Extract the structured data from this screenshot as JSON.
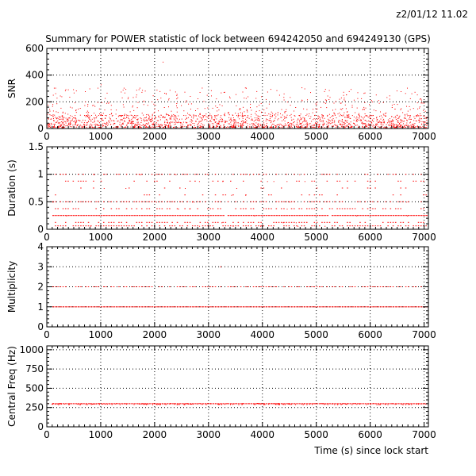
{
  "timestamp": "z2/01/12   11.02",
  "title": "Summary for POWER statistic of lock between 694242050 and 694249130 (GPS)",
  "xlabel": "Time (s) since lock start",
  "colors": {
    "points": "#ff0000",
    "axes": "#000000",
    "grid": "#000000"
  },
  "chart_data": [
    {
      "type": "scatter",
      "ylabel": "SNR",
      "xlim": [
        0,
        7080
      ],
      "ylim": [
        0,
        600
      ],
      "x_ticks": [
        "0",
        "1000",
        "2000",
        "3000",
        "4000",
        "5000",
        "6000",
        "7000"
      ],
      "y_ticks": [
        "0",
        "200",
        "400",
        "600"
      ],
      "grid": true,
      "description_values": {
        "dense_band": [
          10,
          100
        ],
        "sparse_band": [
          100,
          310
        ],
        "max": 500
      }
    },
    {
      "type": "scatter",
      "ylabel": "Duration (s)",
      "xlim": [
        0,
        7080
      ],
      "ylim": [
        0,
        1.5
      ],
      "x_ticks": [
        "0",
        "1000",
        "2000",
        "3000",
        "4000",
        "5000",
        "6000",
        "7000"
      ],
      "y_ticks": [
        "0",
        "0.5",
        "1",
        "1.5"
      ],
      "grid": true,
      "levels": [
        0.0625,
        0.125,
        0.25,
        0.375,
        0.5,
        0.625,
        0.75,
        0.875,
        1.0
      ],
      "level_density": [
        0.7,
        0.6,
        0.98,
        0.5,
        0.55,
        0.15,
        0.12,
        0.3,
        0.35
      ]
    },
    {
      "type": "scatter",
      "ylabel": "Multiplicity",
      "xlim": [
        0,
        7080
      ],
      "ylim": [
        0,
        4
      ],
      "x_ticks": [
        "0",
        "1000",
        "2000",
        "3000",
        "4000",
        "5000",
        "6000",
        "7000"
      ],
      "y_ticks": [
        "0",
        "1",
        "2",
        "3",
        "4"
      ],
      "grid": true,
      "levels": [
        1,
        2,
        3
      ],
      "level_density": [
        1.0,
        0.7,
        0.01
      ]
    },
    {
      "type": "scatter",
      "ylabel": "Central Freq (Hz)",
      "xlim": [
        0,
        7080
      ],
      "ylim": [
        0,
        1050
      ],
      "x_ticks": [
        "0",
        "1000",
        "2000",
        "3000",
        "4000",
        "5000",
        "6000",
        "7000"
      ],
      "y_ticks": [
        "0",
        "250",
        "500",
        "750",
        "1000"
      ],
      "grid": true,
      "levels": [
        300
      ],
      "level_density": [
        1.0
      ]
    }
  ]
}
